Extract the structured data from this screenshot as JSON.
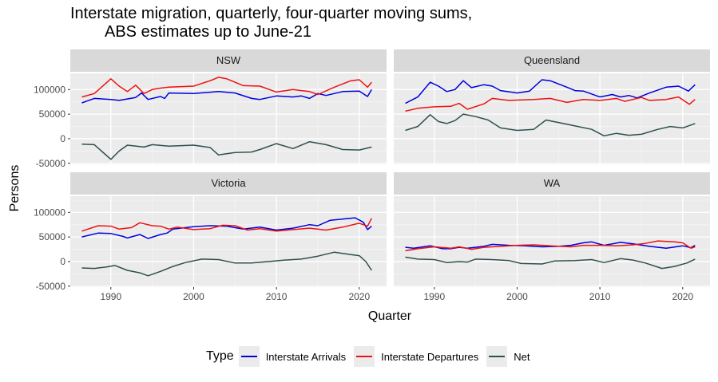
{
  "chart_data": {
    "type": "line",
    "title": [
      "Interstate migration, quarterly, four-quarter moving sums,",
      "ABS estimates up to June-21"
    ],
    "xlabel": "Quarter",
    "ylabel": "Persons",
    "xlim": [
      1985.1,
      2023.3
    ],
    "ylim": [
      -52000,
      133000
    ],
    "x_ticks": [
      1990,
      2000,
      2010,
      2020
    ],
    "x_tick_labels": [
      "1990",
      "2000",
      "2010",
      "2020"
    ],
    "y_ticks": [
      -50000,
      0,
      50000,
      100000
    ],
    "y_tick_labels": [
      "-50000",
      "0",
      "50000",
      "100000"
    ],
    "grid": true,
    "legend": {
      "title": "Type",
      "position": "bottom",
      "entries": [
        {
          "name": "Interstate Arrivals",
          "color": "#0000dd"
        },
        {
          "name": "Interstate Departures",
          "color": "#ee1111"
        },
        {
          "name": "Net",
          "color": "#2f4f4f"
        }
      ]
    },
    "panels": [
      {
        "name": "NSW",
        "series": [
          {
            "name": "Interstate Arrivals",
            "x": [
              1986.5,
              1988,
              1990,
              1991,
              1993,
              1993.7,
              1994.5,
              1996,
              1996.5,
              1997,
              2000,
              2003,
              2005,
              2007,
              2008,
              2010,
              2012,
              2013,
              2014,
              2015,
              2016,
              2018,
              2020,
              2021,
              2021.5
            ],
            "y": [
              73000,
              82000,
              80000,
              78000,
              84000,
              93000,
              80000,
              86000,
              82000,
              93000,
              92000,
              96000,
              93000,
              82000,
              80000,
              87000,
              85000,
              87000,
              82000,
              92000,
              88000,
              96000,
              97000,
              86000,
              100000
            ]
          },
          {
            "name": "Interstate Departures",
            "x": [
              1986.5,
              1988,
              1990,
              1991,
              1992,
              1993,
              1994,
              1995,
              1996,
              1997,
              2000,
              2002,
              2003,
              2004,
              2006,
              2008,
              2010,
              2012,
              2013,
              2014,
              2015,
              2017,
              2019,
              2020,
              2021,
              2021.5
            ],
            "y": [
              85000,
              92000,
              122000,
              107000,
              96000,
              109000,
              92000,
              100000,
              103000,
              105000,
              107000,
              118000,
              125000,
              122000,
              108000,
              107000,
              95000,
              100000,
              98000,
              96000,
              90000,
              105000,
              118000,
              120000,
              105000,
              115000
            ]
          },
          {
            "name": "Net",
            "x": [
              1986.5,
              1988,
              1990,
              1991,
              1992,
              1994,
              1995,
              1997,
              2000,
              2002,
              2003,
              2005,
              2007,
              2008,
              2010,
              2012,
              2014,
              2016,
              2018,
              2020,
              2021.5
            ],
            "y": [
              -11000,
              -12000,
              -42000,
              -25000,
              -13000,
              -17000,
              -12000,
              -15000,
              -13000,
              -18000,
              -33000,
              -28000,
              -27000,
              -22000,
              -10000,
              -20000,
              -6000,
              -12000,
              -22000,
              -23000,
              -17000
            ]
          }
        ]
      },
      {
        "name": "Queensland",
        "series": [
          {
            "name": "Interstate Arrivals",
            "x": [
              1986.5,
              1988,
              1989.5,
              1990.5,
              1991.5,
              1992.5,
              1993.5,
              1994.5,
              1996,
              1997,
              1998,
              2000,
              2001.5,
              2003,
              2004,
              2006,
              2007,
              2008,
              2010,
              2011.5,
              2012.5,
              2013.5,
              2014.5,
              2016,
              2018,
              2019.5,
              2020.7,
              2021.5
            ],
            "y": [
              72000,
              85000,
              115000,
              107000,
              96000,
              100000,
              118000,
              104000,
              110000,
              107000,
              98000,
              93000,
              97000,
              120000,
              118000,
              105000,
              98000,
              97000,
              85000,
              90000,
              85000,
              88000,
              83000,
              93000,
              105000,
              107000,
              97000,
              110000
            ]
          },
          {
            "name": "Interstate Departures",
            "x": [
              1986.5,
              1988,
              1990,
              1992,
              1993,
              1994,
              1996,
              1997,
              1999,
              2002,
              2004,
              2006,
              2008,
              2010,
              2012,
              2013,
              2015,
              2016,
              2018,
              2019.5,
              2020.8,
              2021.5
            ],
            "y": [
              56000,
              62000,
              65000,
              66000,
              72000,
              60000,
              71000,
              82000,
              78000,
              80000,
              82000,
              74000,
              80000,
              78000,
              82000,
              76000,
              84000,
              78000,
              80000,
              85000,
              70000,
              80000
            ]
          },
          {
            "name": "Net",
            "x": [
              1986.5,
              1988,
              1989.5,
              1990.5,
              1991.5,
              1992.5,
              1993.5,
              1995,
              1996.5,
              1998,
              2000,
              2002,
              2003.5,
              2005,
              2007,
              2009,
              2010.5,
              2012,
              2013.5,
              2015,
              2017,
              2018.5,
              2020,
              2021.5
            ],
            "y": [
              17000,
              25000,
              49000,
              35000,
              31000,
              37000,
              50000,
              45000,
              38000,
              22000,
              17000,
              19000,
              38000,
              33000,
              26000,
              19000,
              6000,
              11000,
              7000,
              9000,
              19000,
              25000,
              22000,
              31000
            ]
          }
        ]
      },
      {
        "name": "Victoria",
        "series": [
          {
            "name": "Interstate Arrivals",
            "x": [
              1986.5,
              1988.5,
              1990,
              1991.5,
              1992,
              1993.5,
              1994.5,
              1996,
              1996.8,
              1997.5,
              2000,
              2002,
              2004,
              2006,
              2008,
              2010,
              2012,
              2014,
              2015,
              2016.5,
              2019.5,
              2020.5,
              2021,
              2021.5
            ],
            "y": [
              50000,
              58000,
              57000,
              51000,
              48000,
              55000,
              47000,
              55000,
              58000,
              66000,
              71000,
              73000,
              72000,
              66000,
              70000,
              64000,
              68000,
              75000,
              73000,
              84000,
              89000,
              80000,
              65000,
              72000
            ]
          },
          {
            "name": "Interstate Departures",
            "x": [
              1986.5,
              1988.5,
              1990,
              1991,
              1992.5,
              1993.5,
              1995,
              1996,
              1997,
              1998,
              2000,
              2002,
              2003.5,
              2005,
              2006.5,
              2008,
              2010,
              2012,
              2014,
              2016,
              2018,
              2020,
              2021,
              2021.5
            ],
            "y": [
              62000,
              73000,
              72000,
              66000,
              69000,
              79000,
              73000,
              72000,
              66000,
              70000,
              65000,
              67000,
              74000,
              73000,
              64000,
              67000,
              62000,
              65000,
              68000,
              64000,
              70000,
              78000,
              72000,
              88000
            ]
          },
          {
            "name": "Net",
            "x": [
              1986.5,
              1988,
              1989.5,
              1990.5,
              1992,
              1993.5,
              1994.5,
              1996,
              1997.5,
              1999,
              2001,
              2003,
              2005,
              2007,
              2009,
              2011,
              2013,
              2015,
              2017,
              2019,
              2020,
              2020.8,
              2021.5
            ],
            "y": [
              -13000,
              -14000,
              -11000,
              -8000,
              -18000,
              -23000,
              -29000,
              -20000,
              -10000,
              -2000,
              5000,
              4000,
              -3000,
              -3000,
              0,
              3000,
              5000,
              11000,
              19000,
              14000,
              12000,
              0,
              -18000
            ]
          }
        ]
      },
      {
        "name": "WA",
        "series": [
          {
            "name": "Interstate Arrivals",
            "x": [
              1986.5,
              1987.5,
              1989.5,
              1991,
              1992,
              1993,
              1994,
              1996,
              1997,
              1999,
              2001,
              2003,
              2005,
              2006.5,
              2008,
              2009,
              2010.5,
              2012.5,
              2014,
              2016,
              2018,
              2020,
              2021,
              2021.5
            ],
            "y": [
              29000,
              27000,
              32000,
              26000,
              26000,
              29000,
              27000,
              31000,
              35000,
              33000,
              32000,
              30000,
              31000,
              33000,
              38000,
              40000,
              33000,
              39000,
              36000,
              31000,
              27000,
              32000,
              28000,
              33000
            ]
          },
          {
            "name": "Interstate Departures",
            "x": [
              1986.5,
              1988,
              1990,
              1992,
              1993,
              1994.5,
              1996,
              1998,
              2000,
              2002,
              2004,
              2006.5,
              2008,
              2010,
              2012,
              2014,
              2015.5,
              2017,
              2019,
              2020,
              2021,
              2021.5
            ],
            "y": [
              22000,
              26000,
              30000,
              27000,
              30000,
              25000,
              29000,
              31000,
              33000,
              34000,
              32000,
              30000,
              33000,
              33000,
              32000,
              34000,
              37000,
              42000,
              40000,
              38000,
              27000,
              30000
            ]
          },
          {
            "name": "Net",
            "x": [
              1986.5,
              1988,
              1990,
              1991.5,
              1993,
              1994,
              1995,
              1997,
              1999,
              2000.5,
              2003,
              2004.5,
              2007,
              2009,
              2010.5,
              2012.5,
              2014,
              2015.5,
              2017.5,
              2019,
              2020.5,
              2021.5
            ],
            "y": [
              9000,
              5000,
              4000,
              -2000,
              0,
              -1000,
              5000,
              4000,
              2000,
              -4000,
              -5000,
              1000,
              2000,
              4000,
              -2000,
              6000,
              3000,
              -3000,
              -14000,
              -10000,
              -3000,
              5000
            ]
          }
        ]
      }
    ]
  }
}
